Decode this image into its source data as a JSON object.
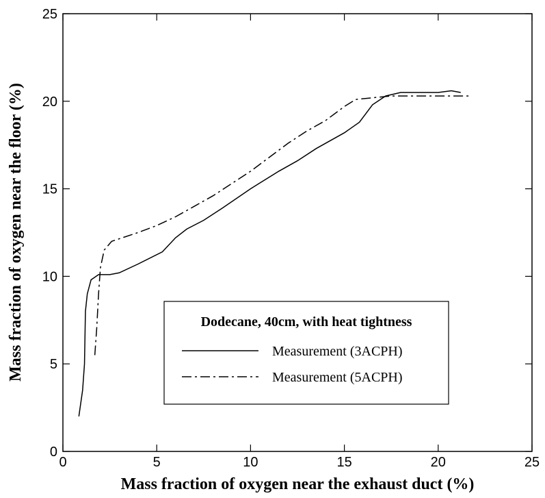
{
  "chart_data": {
    "type": "line",
    "x_label": "Mass fraction of oxygen near the exhaust duct (%)",
    "y_label": "Mass fraction of oxygen near the floor (%)",
    "legend_title": "Dodecane, 40cm, with heat tightness",
    "xlim": [
      0,
      25
    ],
    "xticks": [
      0,
      5,
      10,
      15,
      20,
      25
    ],
    "ylim": [
      0,
      25
    ],
    "yticks": [
      0,
      5,
      10,
      15,
      20,
      25
    ],
    "grid": false,
    "series": [
      {
        "name": "Measurement (3ACPH)",
        "color": "#000000",
        "dash": "solid",
        "x": [
          0.85,
          1.05,
          1.15,
          1.2,
          1.3,
          1.5,
          1.9,
          2.5,
          3.0,
          4.0,
          5.3,
          6.0,
          6.6,
          7.5,
          8.5,
          10.0,
          11.5,
          12.5,
          13.5,
          15.0,
          15.8,
          16.5,
          17.2,
          18.0,
          19.0,
          20.0,
          20.7,
          21.2
        ],
        "values": [
          2.0,
          3.5,
          5.0,
          8.0,
          9.0,
          9.8,
          10.1,
          10.1,
          10.2,
          10.7,
          11.4,
          12.2,
          12.7,
          13.2,
          13.9,
          15.0,
          16.0,
          16.6,
          17.3,
          18.2,
          18.8,
          19.8,
          20.3,
          20.5,
          20.5,
          20.5,
          20.6,
          20.5
        ]
      },
      {
        "name": "Measurement (5ACPH)",
        "color": "#000000",
        "dash": "dashdot",
        "x": [
          1.7,
          1.8,
          1.9,
          2.0,
          2.2,
          2.6,
          4.0,
          5.0,
          6.0,
          7.0,
          8.0,
          9.0,
          10.0,
          11.0,
          12.0,
          13.0,
          14.0,
          15.0,
          15.6,
          16.5,
          17.5,
          20.0,
          21.7
        ],
        "values": [
          5.5,
          7.0,
          9.0,
          10.5,
          11.5,
          12.0,
          12.5,
          12.9,
          13.4,
          14.0,
          14.6,
          15.3,
          16.0,
          16.8,
          17.6,
          18.3,
          18.9,
          19.7,
          20.1,
          20.2,
          20.3,
          20.3,
          20.3
        ]
      }
    ]
  }
}
